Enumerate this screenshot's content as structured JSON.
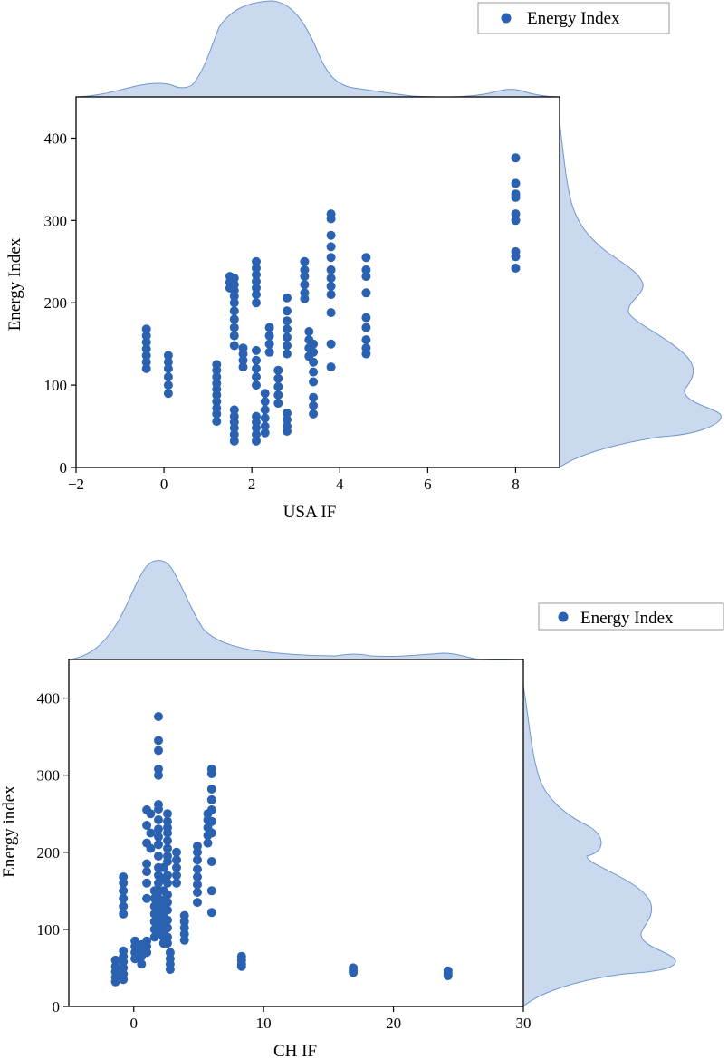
{
  "colors": {
    "point": "#2a62b1",
    "kde_fill": "#cad9ee",
    "kde_stroke": "#6f98ce"
  },
  "chart_data": [
    {
      "type": "scatter",
      "title": "",
      "xlabel": "USA IF",
      "ylabel": "Energy Index",
      "xlim": [
        -2,
        9
      ],
      "ylim": [
        0,
        450
      ],
      "xticks": [
        "−2",
        "0",
        "2",
        "4",
        "6",
        "8"
      ],
      "yticks": [
        "0",
        "100",
        "200",
        "300",
        "400"
      ],
      "legend": {
        "label": "Energy Index",
        "position": "top-right"
      },
      "marginal_kde": true,
      "series": [
        {
          "name": "Energy Index",
          "points": [
            [
              -0.4,
              168
            ],
            [
              -0.4,
              160
            ],
            [
              -0.4,
              152
            ],
            [
              -0.4,
              144
            ],
            [
              -0.4,
              136
            ],
            [
              -0.4,
              128
            ],
            [
              -0.4,
              120
            ],
            [
              0.1,
              136
            ],
            [
              0.1,
              128
            ],
            [
              0.1,
              120
            ],
            [
              0.1,
              110
            ],
            [
              0.1,
              100
            ],
            [
              0.1,
              90
            ],
            [
              1.2,
              125
            ],
            [
              1.2,
              118
            ],
            [
              1.2,
              110
            ],
            [
              1.2,
              102
            ],
            [
              1.2,
              95
            ],
            [
              1.2,
              88
            ],
            [
              1.2,
              80
            ],
            [
              1.2,
              72
            ],
            [
              1.2,
              65
            ],
            [
              1.2,
              56
            ],
            [
              1.5,
              232
            ],
            [
              1.5,
              225
            ],
            [
              1.5,
              218
            ],
            [
              1.6,
              230
            ],
            [
              1.6,
              222
            ],
            [
              1.6,
              215
            ],
            [
              1.6,
              208
            ],
            [
              1.6,
              200
            ],
            [
              1.6,
              190
            ],
            [
              1.6,
              180
            ],
            [
              1.6,
              170
            ],
            [
              1.6,
              160
            ],
            [
              1.6,
              148
            ],
            [
              1.6,
              70
            ],
            [
              1.6,
              62
            ],
            [
              1.6,
              55
            ],
            [
              1.6,
              48
            ],
            [
              1.6,
              40
            ],
            [
              1.6,
              32
            ],
            [
              1.8,
              145
            ],
            [
              1.8,
              138
            ],
            [
              1.8,
              130
            ],
            [
              1.8,
              122
            ],
            [
              2.1,
              250
            ],
            [
              2.1,
              242
            ],
            [
              2.1,
              234
            ],
            [
              2.1,
              226
            ],
            [
              2.1,
              218
            ],
            [
              2.1,
              210
            ],
            [
              2.1,
              200
            ],
            [
              2.1,
              142
            ],
            [
              2.1,
              130
            ],
            [
              2.1,
              120
            ],
            [
              2.1,
              110
            ],
            [
              2.1,
              100
            ],
            [
              2.1,
              62
            ],
            [
              2.1,
              55
            ],
            [
              2.1,
              48
            ],
            [
              2.1,
              40
            ],
            [
              2.1,
              32
            ],
            [
              2.3,
              90
            ],
            [
              2.3,
              80
            ],
            [
              2.3,
              70
            ],
            [
              2.3,
              60
            ],
            [
              2.3,
              50
            ],
            [
              2.3,
              42
            ],
            [
              2.4,
              170
            ],
            [
              2.4,
              160
            ],
            [
              2.4,
              150
            ],
            [
              2.4,
              140
            ],
            [
              2.6,
              118
            ],
            [
              2.6,
              108
            ],
            [
              2.6,
              98
            ],
            [
              2.6,
              88
            ],
            [
              2.6,
              78
            ],
            [
              2.8,
              206
            ],
            [
              2.8,
              190
            ],
            [
              2.8,
              178
            ],
            [
              2.8,
              168
            ],
            [
              2.8,
              158
            ],
            [
              2.8,
              148
            ],
            [
              2.8,
              138
            ],
            [
              2.8,
              66
            ],
            [
              2.8,
              58
            ],
            [
              2.8,
              50
            ],
            [
              2.8,
              44
            ],
            [
              3.2,
              250
            ],
            [
              3.2,
              240
            ],
            [
              3.2,
              232
            ],
            [
              3.2,
              222
            ],
            [
              3.2,
              212
            ],
            [
              3.2,
              205
            ],
            [
              3.3,
              165
            ],
            [
              3.3,
              155
            ],
            [
              3.3,
              145
            ],
            [
              3.3,
              135
            ],
            [
              3.4,
              150
            ],
            [
              3.4,
              140
            ],
            [
              3.4,
              128
            ],
            [
              3.4,
              116
            ],
            [
              3.4,
              104
            ],
            [
              3.4,
              85
            ],
            [
              3.4,
              75
            ],
            [
              3.4,
              65
            ],
            [
              3.8,
              308
            ],
            [
              3.8,
              302
            ],
            [
              3.8,
              282
            ],
            [
              3.8,
              268
            ],
            [
              3.8,
              255
            ],
            [
              3.8,
              240
            ],
            [
              3.8,
              230
            ],
            [
              3.8,
              220
            ],
            [
              3.8,
              210
            ],
            [
              3.8,
              188
            ],
            [
              3.8,
              150
            ],
            [
              3.8,
              122
            ],
            [
              4.6,
              255
            ],
            [
              4.6,
              240
            ],
            [
              4.6,
              232
            ],
            [
              4.6,
              212
            ],
            [
              4.6,
              182
            ],
            [
              4.6,
              170
            ],
            [
              4.6,
              155
            ],
            [
              4.6,
              145
            ],
            [
              4.6,
              138
            ],
            [
              8.0,
              376
            ],
            [
              8.0,
              345
            ],
            [
              8.0,
              332
            ],
            [
              8.0,
              328
            ],
            [
              8.0,
              308
            ],
            [
              8.0,
              300
            ],
            [
              8.0,
              262
            ],
            [
              8.0,
              256
            ],
            [
              8.0,
              242
            ]
          ]
        }
      ]
    },
    {
      "type": "scatter",
      "title": "",
      "xlabel": "CH IF",
      "ylabel": "Energy index",
      "xlim": [
        -5,
        30
      ],
      "ylim": [
        0,
        450
      ],
      "xticks": [
        "0",
        "10",
        "20",
        "30"
      ],
      "yticks": [
        "0",
        "100",
        "200",
        "300",
        "400"
      ],
      "legend": {
        "label": "Energy Index",
        "position": "top-right"
      },
      "marginal_kde": true,
      "series": [
        {
          "name": "Energy Index",
          "points": [
            [
              -1.4,
              60
            ],
            [
              -1.4,
              52
            ],
            [
              -1.4,
              45
            ],
            [
              -1.4,
              38
            ],
            [
              -1.4,
              32
            ],
            [
              -0.8,
              168
            ],
            [
              -0.8,
              160
            ],
            [
              -0.8,
              150
            ],
            [
              -0.8,
              140
            ],
            [
              -0.8,
              130
            ],
            [
              -0.8,
              120
            ],
            [
              -0.8,
              72
            ],
            [
              -0.8,
              65
            ],
            [
              -0.8,
              58
            ],
            [
              -0.8,
              50
            ],
            [
              -0.8,
              42
            ],
            [
              -0.8,
              35
            ],
            [
              0.1,
              85
            ],
            [
              0.1,
              78
            ],
            [
              0.1,
              70
            ],
            [
              0.1,
              62
            ],
            [
              0.6,
              80
            ],
            [
              0.6,
              72
            ],
            [
              0.6,
              65
            ],
            [
              0.6,
              55
            ],
            [
              1.0,
              255
            ],
            [
              1.0,
              235
            ],
            [
              1.0,
              212
            ],
            [
              1.0,
              185
            ],
            [
              1.0,
              175
            ],
            [
              1.0,
              160
            ],
            [
              1.0,
              140
            ],
            [
              1.0,
              85
            ],
            [
              1.0,
              78
            ],
            [
              1.0,
              70
            ],
            [
              1.3,
              250
            ],
            [
              1.3,
              225
            ],
            [
              1.3,
              205
            ],
            [
              1.6,
              150
            ],
            [
              1.6,
              140
            ],
            [
              1.6,
              130
            ],
            [
              1.6,
              120
            ],
            [
              1.6,
              110
            ],
            [
              1.6,
              100
            ],
            [
              1.6,
              90
            ],
            [
              1.9,
              376
            ],
            [
              1.9,
              345
            ],
            [
              1.9,
              332
            ],
            [
              1.9,
              308
            ],
            [
              1.9,
              300
            ],
            [
              1.9,
              262
            ],
            [
              1.9,
              256
            ],
            [
              1.9,
              242
            ],
            [
              1.9,
              230
            ],
            [
              1.9,
              220
            ],
            [
              1.9,
              210
            ],
            [
              1.9,
              195
            ],
            [
              1.9,
              180
            ],
            [
              1.9,
              170
            ],
            [
              1.9,
              160
            ],
            [
              1.9,
              150
            ],
            [
              1.9,
              140
            ],
            [
              1.9,
              130
            ],
            [
              1.9,
              120
            ],
            [
              1.9,
              110
            ],
            [
              1.9,
              100
            ],
            [
              1.9,
              95
            ],
            [
              2.3,
              180
            ],
            [
              2.3,
              165
            ],
            [
              2.3,
              150
            ],
            [
              2.3,
              138
            ],
            [
              2.3,
              128
            ],
            [
              2.3,
              118
            ],
            [
              2.3,
              108
            ],
            [
              2.3,
              98
            ],
            [
              2.3,
              90
            ],
            [
              2.3,
              82
            ],
            [
              2.6,
              250
            ],
            [
              2.6,
              240
            ],
            [
              2.6,
              232
            ],
            [
              2.6,
              225
            ],
            [
              2.6,
              215
            ],
            [
              2.6,
              205
            ],
            [
              2.6,
              195
            ],
            [
              2.6,
              188
            ],
            [
              2.6,
              170
            ],
            [
              2.6,
              160
            ],
            [
              2.6,
              145
            ],
            [
              2.6,
              135
            ],
            [
              2.6,
              125
            ],
            [
              2.6,
              112
            ],
            [
              2.6,
              102
            ],
            [
              2.6,
              90
            ],
            [
              2.6,
              82
            ],
            [
              2.8,
              70
            ],
            [
              2.8,
              62
            ],
            [
              2.8,
              55
            ],
            [
              2.8,
              48
            ],
            [
              3.3,
              200
            ],
            [
              3.3,
              190
            ],
            [
              3.3,
              180
            ],
            [
              3.3,
              170
            ],
            [
              3.3,
              160
            ],
            [
              3.9,
              118
            ],
            [
              3.9,
              110
            ],
            [
              3.9,
              102
            ],
            [
              3.9,
              94
            ],
            [
              3.9,
              86
            ],
            [
              4.9,
              208
            ],
            [
              4.9,
              200
            ],
            [
              4.9,
              190
            ],
            [
              4.9,
              178
            ],
            [
              4.9,
              168
            ],
            [
              4.9,
              158
            ],
            [
              4.9,
              148
            ],
            [
              4.9,
              135
            ],
            [
              5.7,
              250
            ],
            [
              5.7,
              242
            ],
            [
              5.7,
              232
            ],
            [
              5.7,
              222
            ],
            [
              5.7,
              212
            ],
            [
              6.0,
              308
            ],
            [
              6.0,
              302
            ],
            [
              6.0,
              282
            ],
            [
              6.0,
              268
            ],
            [
              6.0,
              255
            ],
            [
              6.0,
              240
            ],
            [
              6.0,
              225
            ],
            [
              6.0,
              188
            ],
            [
              6.0,
              150
            ],
            [
              6.0,
              122
            ],
            [
              8.3,
              65
            ],
            [
              8.3,
              60
            ],
            [
              8.3,
              55
            ],
            [
              8.3,
              52
            ],
            [
              16.9,
              50
            ],
            [
              16.9,
              47
            ],
            [
              16.9,
              44
            ],
            [
              24.2,
              46
            ],
            [
              24.2,
              43
            ],
            [
              24.2,
              40
            ]
          ]
        }
      ]
    }
  ]
}
